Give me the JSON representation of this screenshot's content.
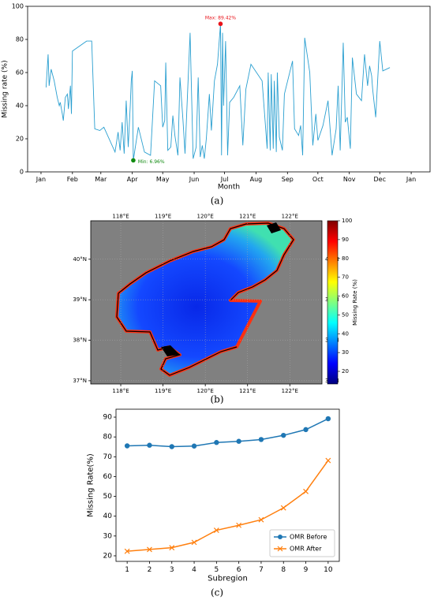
{
  "chart_data": [
    {
      "type": "line",
      "panel_label": "(a)",
      "xlabel": "Month",
      "ylabel": "Missing rate (%)",
      "color": "#2a9fd0",
      "x": [
        5,
        7,
        8,
        10,
        13,
        16,
        18,
        19,
        21,
        22,
        24,
        26,
        27,
        29,
        30,
        31,
        45,
        50,
        53,
        58,
        62,
        73,
        76,
        78,
        80,
        82,
        84,
        86,
        88,
        89,
        90,
        91,
        96,
        102,
        108,
        112,
        118,
        120,
        122,
        123,
        125,
        128,
        130,
        132,
        135,
        137,
        140,
        142,
        147,
        150,
        153,
        155,
        157,
        159,
        161,
        163,
        166,
        168,
        171,
        174,
        177,
        178,
        179,
        180,
        182,
        184,
        186,
        190,
        196,
        199,
        202,
        207,
        218,
        223,
        224,
        226,
        227,
        229,
        230,
        232,
        233,
        235,
        238,
        240,
        248,
        250,
        254,
        256,
        258,
        260,
        265,
        268,
        271,
        273,
        278,
        283,
        287,
        291,
        293,
        295,
        298,
        300,
        302,
        305,
        307,
        311,
        316,
        319,
        322,
        324,
        326,
        327,
        330,
        334,
        337,
        344
      ],
      "values": [
        51,
        71,
        52,
        62,
        55,
        45,
        40,
        42,
        35,
        31,
        45,
        47,
        38,
        52,
        35,
        73,
        79,
        79,
        26,
        25,
        27,
        12,
        24,
        13,
        30,
        11,
        43,
        15,
        40,
        55,
        61,
        6.96,
        27,
        12,
        10,
        55,
        52,
        27,
        31,
        66,
        13,
        15,
        34,
        22,
        10,
        57,
        31,
        11,
        84,
        8,
        15,
        57,
        9,
        16,
        8,
        20,
        47,
        25,
        55,
        65,
        89.42,
        10,
        84,
        40,
        79,
        10,
        42,
        45,
        52,
        16,
        50,
        65,
        55,
        14,
        60,
        13,
        59,
        14,
        55,
        12,
        60,
        21,
        13,
        47,
        67,
        26,
        22,
        28,
        10,
        81,
        60,
        16,
        35,
        19,
        28,
        43,
        10,
        26,
        52,
        13,
        78,
        30,
        33,
        14,
        69,
        47,
        43,
        71,
        52,
        64,
        58,
        50,
        33,
        79,
        61,
        63
      ],
      "xlim": [
        -13.2,
        383.6
      ],
      "ylim": [
        0,
        100
      ],
      "yticks": [
        0,
        20,
        40,
        60,
        80,
        100
      ],
      "xticks": [
        {
          "value": 0,
          "label": "Jan"
        },
        {
          "value": 31,
          "label": "Feb"
        },
        {
          "value": 59,
          "label": "Mar"
        },
        {
          "value": 90,
          "label": "Apr"
        },
        {
          "value": 120,
          "label": "May"
        },
        {
          "value": 151,
          "label": "Jun"
        },
        {
          "value": 181,
          "label": "Jul"
        },
        {
          "value": 212,
          "label": "Aug"
        },
        {
          "value": 243,
          "label": "Sep"
        },
        {
          "value": 273,
          "label": "Oct"
        },
        {
          "value": 304,
          "label": "Nov"
        },
        {
          "value": 334,
          "label": "Dec"
        },
        {
          "value": 365,
          "label": "Jan"
        }
      ],
      "annotations": [
        {
          "text": "Max: 89.42%",
          "x": 177,
          "y": 89.42,
          "color": "#e8141b"
        },
        {
          "text": "Min: 6.96%",
          "x": 91,
          "y": 6.96,
          "color": "#108a10"
        }
      ]
    },
    {
      "type": "map",
      "panel_label": "(b)",
      "xlim": [
        117.29,
        122.76
      ],
      "ylim": [
        36.92,
        40.95
      ],
      "xticks": [
        {
          "value": 118,
          "label": "118°E"
        },
        {
          "value": 119,
          "label": "119°E"
        },
        {
          "value": 120,
          "label": "120°E"
        },
        {
          "value": 121,
          "label": "121°E"
        },
        {
          "value": 122,
          "label": "122°E"
        }
      ],
      "yticks": [
        {
          "value": 37,
          "label": "37°N"
        },
        {
          "value": 38,
          "label": "38°N"
        },
        {
          "value": 39,
          "label": "39°N"
        },
        {
          "value": 40,
          "label": "40°N"
        }
      ],
      "colorbar": {
        "label": "Missing Rate (%)",
        "lim": [
          13.3,
          100
        ],
        "ticks": [
          20,
          30,
          40,
          50,
          60,
          70,
          80,
          90,
          100
        ]
      }
    },
    {
      "type": "line",
      "panel_label": "(c)",
      "xlabel": "Subregion",
      "ylabel": "Missing Rate(%)",
      "x": [
        1,
        2,
        3,
        4,
        5,
        6,
        7,
        8,
        9,
        10
      ],
      "xlim": [
        0.5,
        10.5
      ],
      "xticks": [
        1,
        2,
        3,
        4,
        5,
        6,
        7,
        8,
        9,
        10
      ],
      "ylim": [
        17.2,
        94
      ],
      "yticks": [
        20,
        30,
        40,
        50,
        60,
        70,
        80,
        90
      ],
      "legend": "lower right",
      "series": [
        {
          "name": "OMR Before",
          "color": "#1f77b4",
          "marker": "o",
          "values": [
            75.5,
            75.8,
            75.1,
            75.4,
            77.2,
            77.8,
            78.7,
            80.8,
            83.7,
            89.2
          ]
        },
        {
          "name": "OMR After",
          "color": "#ff7f0e",
          "marker": "x",
          "values": [
            22.3,
            23.2,
            24.1,
            26.8,
            32.9,
            35.4,
            38.2,
            44.2,
            52.5,
            68.1
          ]
        }
      ]
    }
  ]
}
